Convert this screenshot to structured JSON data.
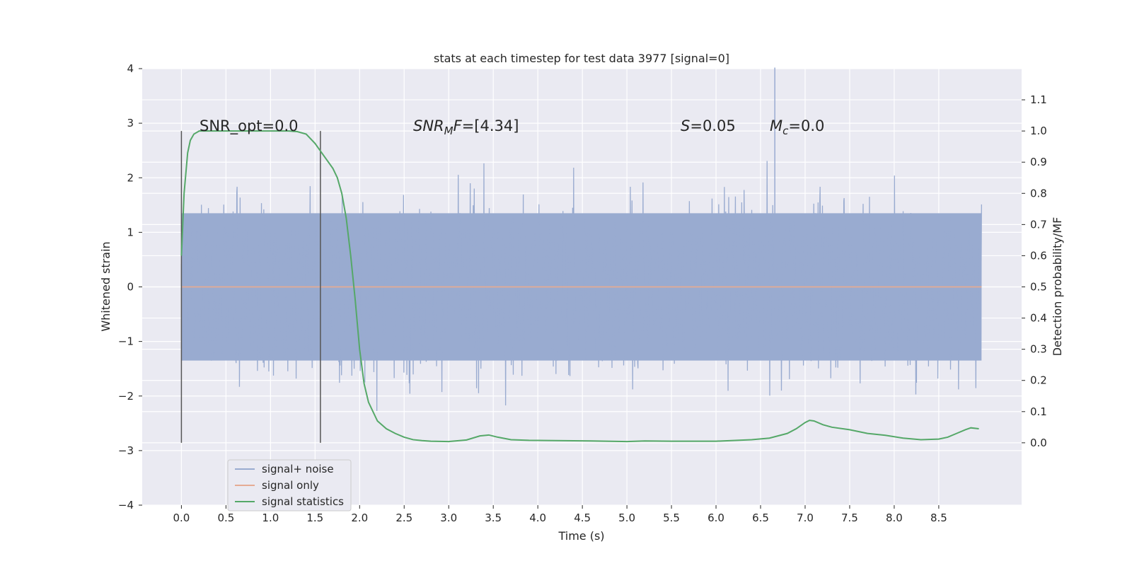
{
  "chart_data": {
    "type": "line",
    "title": "stats at each timestep for test data 3977 [signal=0]",
    "xlabel": "Time (s)",
    "ylabel_left": "Whitened strain",
    "ylabel_right": "Detection probability/MF",
    "xlim": [
      -0.44,
      9.43
    ],
    "ylim_left": [
      -4.0,
      4.0
    ],
    "ylim_right": [
      -0.2,
      1.2
    ],
    "xticks": [
      "0.0",
      "0.5",
      "1.0",
      "1.5",
      "2.0",
      "2.5",
      "3.0",
      "3.5",
      "4.0",
      "4.5",
      "5.0",
      "5.5",
      "6.0",
      "6.5",
      "7.0",
      "7.5",
      "8.0",
      "8.5"
    ],
    "yticks_left": [
      "4",
      "3",
      "2",
      "1",
      "0",
      "−1",
      "−2",
      "−3",
      "−4"
    ],
    "yticks_right": [
      "1.1",
      "1.0",
      "0.9",
      "0.8",
      "0.7",
      "0.6",
      "0.5",
      "0.4",
      "0.3",
      "0.2",
      "0.1",
      "0.0"
    ],
    "grid": true,
    "legend_position": "lower-left",
    "annotations": {
      "snr_opt": "SNR_opt=0.0",
      "snr_mf_base": "SNR",
      "snr_mf_sub": "M",
      "snr_mf_rest": "F=[4.34]",
      "s_var": "S",
      "s_val": "=0.05",
      "mc_var": "M",
      "mc_sub": "c",
      "mc_val": "=0.0"
    },
    "window_markers_s": [
      0.0,
      1.56
    ],
    "series": [
      {
        "name": "signal+ noise",
        "color": "#99abd0",
        "kind": "noise",
        "x_range": [
          0.0,
          8.98
        ],
        "band": [
          -1.35,
          1.35
        ],
        "max_abs": 4.02
      },
      {
        "name": "signal only",
        "color": "#e5ab93",
        "kind": "constant",
        "x_range": [
          0.0,
          8.98
        ],
        "value": 0.0
      },
      {
        "name": "signal statistics",
        "color": "#55a868",
        "kind": "line",
        "axis": "right",
        "x": [
          0.0,
          0.03,
          0.07,
          0.1,
          0.14,
          0.2,
          0.3,
          0.5,
          0.8,
          1.1,
          1.2,
          1.3,
          1.4,
          1.5,
          1.6,
          1.7,
          1.75,
          1.8,
          1.85,
          1.9,
          1.95,
          2.0,
          2.05,
          2.1,
          2.2,
          2.3,
          2.4,
          2.5,
          2.6,
          2.7,
          2.8,
          3.0,
          3.2,
          3.35,
          3.45,
          3.55,
          3.7,
          3.9,
          4.2,
          4.6,
          5.0,
          5.2,
          5.5,
          6.0,
          6.4,
          6.6,
          6.8,
          6.9,
          7.0,
          7.05,
          7.1,
          7.2,
          7.3,
          7.5,
          7.7,
          7.9,
          8.1,
          8.3,
          8.5,
          8.6,
          8.7,
          8.8,
          8.86,
          8.95
        ],
        "y": [
          0.6,
          0.8,
          0.93,
          0.97,
          0.99,
          1.0,
          1.0,
          1.0,
          1.0,
          1.0,
          1.0,
          0.998,
          0.99,
          0.96,
          0.92,
          0.88,
          0.85,
          0.8,
          0.72,
          0.6,
          0.46,
          0.3,
          0.19,
          0.13,
          0.07,
          0.045,
          0.03,
          0.018,
          0.01,
          0.007,
          0.005,
          0.004,
          0.009,
          0.022,
          0.025,
          0.018,
          0.01,
          0.008,
          0.007,
          0.006,
          0.004,
          0.006,
          0.005,
          0.005,
          0.01,
          0.015,
          0.03,
          0.045,
          0.065,
          0.072,
          0.07,
          0.058,
          0.05,
          0.042,
          0.03,
          0.024,
          0.015,
          0.01,
          0.012,
          0.018,
          0.03,
          0.042,
          0.048,
          0.045
        ]
      }
    ]
  }
}
